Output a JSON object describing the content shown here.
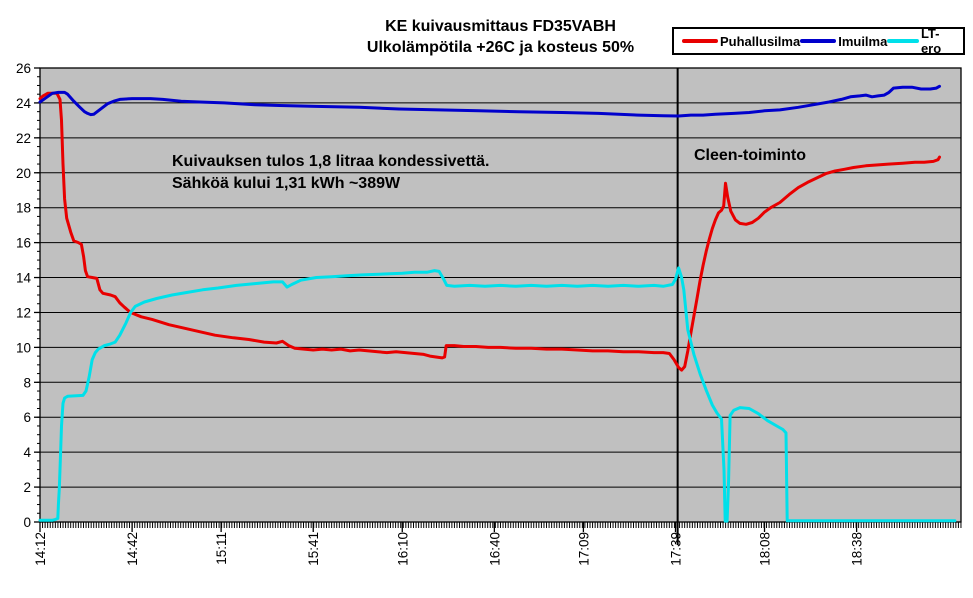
{
  "title": {
    "line1": "KE kuivausmittaus FD35VABH",
    "line2": "Ulkolämpötila +26C ja kosteus 50%"
  },
  "annotations": {
    "result_line1": "Kuivauksen tulos 1,8 litraa kondessivettä.",
    "result_line2": "Sähköä kului 1,31 kWh ~389W",
    "event_label": "Cleen-toiminto"
  },
  "chart_data": {
    "type": "line",
    "title": "KE kuivausmittaus FD35VABH — Ulkolämpötila +26C ja kosteus 50%",
    "xlabel": "",
    "ylabel": "",
    "x_unit": "minutes after 14:12",
    "x_axis_end_minute": 300,
    "ylim": [
      0,
      26
    ],
    "y_tick_step": 2,
    "y_minor_tick_step": 0.5,
    "x_minor_tick_minutes": 0.8333,
    "grid": "horizontal-black-on-gray",
    "plot_bg": "#c0c0c0",
    "grid_color": "#000000",
    "legend_position": "top-right",
    "event_line_minute": 207.7,
    "event_line_color": "#000000",
    "y_tick_labels": [
      "0",
      "2",
      "4",
      "6",
      "8",
      "10",
      "12",
      "14",
      "16",
      "18",
      "20",
      "22",
      "24",
      "26"
    ],
    "x_ticks": [
      {
        "minute": 0,
        "label": "14:12"
      },
      {
        "minute": 30,
        "label": "14:42"
      },
      {
        "minute": 59,
        "label": "15:11"
      },
      {
        "minute": 89,
        "label": "15:41"
      },
      {
        "minute": 118,
        "label": "16:10"
      },
      {
        "minute": 148,
        "label": "16:40"
      },
      {
        "minute": 177,
        "label": "17:09"
      },
      {
        "minute": 207,
        "label": "17:39"
      },
      {
        "minute": 236,
        "label": "18:08"
      },
      {
        "minute": 266,
        "label": "18:38"
      }
    ],
    "series": [
      {
        "name": "Puhallusilma",
        "color": "#e80000",
        "points": [
          [
            0,
            24.25
          ],
          [
            1,
            24.4
          ],
          [
            2.5,
            24.55
          ],
          [
            5.5,
            24.55
          ],
          [
            6.5,
            24.2
          ],
          [
            7,
            23
          ],
          [
            7.5,
            20.5
          ],
          [
            8,
            18.5
          ],
          [
            8.7,
            17.4
          ],
          [
            10,
            16.6
          ],
          [
            11,
            16.1
          ],
          [
            12.5,
            16
          ],
          [
            13.5,
            15.9
          ],
          [
            14.2,
            15.2
          ],
          [
            14.8,
            14.4
          ],
          [
            15.5,
            14.05
          ],
          [
            17,
            14
          ],
          [
            18.5,
            13.95
          ],
          [
            19.5,
            13.3
          ],
          [
            20.5,
            13.1
          ],
          [
            23,
            13
          ],
          [
            24.5,
            12.9
          ],
          [
            26,
            12.55
          ],
          [
            27.5,
            12.3
          ],
          [
            29.5,
            12
          ],
          [
            33,
            11.75
          ],
          [
            36.5,
            11.6
          ],
          [
            42,
            11.3
          ],
          [
            47,
            11.1
          ],
          [
            52,
            10.9
          ],
          [
            57,
            10.7
          ],
          [
            63,
            10.55
          ],
          [
            68,
            10.45
          ],
          [
            73,
            10.3
          ],
          [
            77,
            10.25
          ],
          [
            79,
            10.35
          ],
          [
            81,
            10.1
          ],
          [
            83,
            9.95
          ],
          [
            86,
            9.9
          ],
          [
            89,
            9.85
          ],
          [
            92,
            9.9
          ],
          [
            95,
            9.85
          ],
          [
            98,
            9.9
          ],
          [
            101,
            9.8
          ],
          [
            104,
            9.85
          ],
          [
            107,
            9.8
          ],
          [
            110,
            9.75
          ],
          [
            113,
            9.7
          ],
          [
            116,
            9.75
          ],
          [
            119,
            9.7
          ],
          [
            122,
            9.65
          ],
          [
            125,
            9.6
          ],
          [
            127,
            9.5
          ],
          [
            129,
            9.45
          ],
          [
            131,
            9.4
          ],
          [
            131.8,
            9.45
          ],
          [
            132.3,
            10.1
          ],
          [
            135,
            10.1
          ],
          [
            138,
            10.05
          ],
          [
            142,
            10.05
          ],
          [
            146,
            10
          ],
          [
            150,
            10
          ],
          [
            155,
            9.95
          ],
          [
            160,
            9.95
          ],
          [
            165,
            9.9
          ],
          [
            170,
            9.9
          ],
          [
            175,
            9.85
          ],
          [
            180,
            9.8
          ],
          [
            185,
            9.8
          ],
          [
            190,
            9.75
          ],
          [
            195,
            9.75
          ],
          [
            200,
            9.7
          ],
          [
            203,
            9.7
          ],
          [
            205,
            9.65
          ],
          [
            206.5,
            9.3
          ],
          [
            208,
            8.85
          ],
          [
            209,
            8.7
          ],
          [
            210,
            8.9
          ],
          [
            211,
            9.8
          ],
          [
            212,
            10.8
          ],
          [
            213,
            11.8
          ],
          [
            214,
            12.8
          ],
          [
            215,
            13.8
          ],
          [
            216,
            14.7
          ],
          [
            217,
            15.5
          ],
          [
            218,
            16.2
          ],
          [
            219,
            16.8
          ],
          [
            220,
            17.3
          ],
          [
            221,
            17.7
          ],
          [
            222,
            17.85
          ],
          [
            222.7,
            18.1
          ],
          [
            223.3,
            19.4
          ],
          [
            224,
            18.6
          ],
          [
            225,
            17.8
          ],
          [
            226.5,
            17.3
          ],
          [
            228,
            17.1
          ],
          [
            230,
            17.05
          ],
          [
            232,
            17.15
          ],
          [
            234,
            17.4
          ],
          [
            236,
            17.75
          ],
          [
            238,
            18
          ],
          [
            241,
            18.3
          ],
          [
            244,
            18.75
          ],
          [
            247,
            19.15
          ],
          [
            250,
            19.45
          ],
          [
            253,
            19.7
          ],
          [
            256,
            19.95
          ],
          [
            259,
            20.1
          ],
          [
            262,
            20.2
          ],
          [
            265,
            20.3
          ],
          [
            269,
            20.4
          ],
          [
            273,
            20.45
          ],
          [
            277,
            20.5
          ],
          [
            281,
            20.55
          ],
          [
            285,
            20.6
          ],
          [
            288,
            20.6
          ],
          [
            291,
            20.65
          ],
          [
            292.5,
            20.75
          ],
          [
            293,
            20.9
          ]
        ]
      },
      {
        "name": "Imuilma",
        "color": "#0000cc",
        "points": [
          [
            0,
            24.05
          ],
          [
            2,
            24.3
          ],
          [
            4,
            24.55
          ],
          [
            6,
            24.6
          ],
          [
            8,
            24.6
          ],
          [
            9,
            24.5
          ],
          [
            11,
            24.1
          ],
          [
            13,
            23.75
          ],
          [
            14.5,
            23.5
          ],
          [
            15.5,
            23.4
          ],
          [
            16.5,
            23.33
          ],
          [
            17.5,
            23.35
          ],
          [
            19,
            23.55
          ],
          [
            20.5,
            23.75
          ],
          [
            22,
            23.95
          ],
          [
            24,
            24.1
          ],
          [
            26,
            24.2
          ],
          [
            30,
            24.25
          ],
          [
            36,
            24.25
          ],
          [
            40,
            24.2
          ],
          [
            46,
            24.1
          ],
          [
            52,
            24.05
          ],
          [
            60,
            24
          ],
          [
            70,
            23.9
          ],
          [
            78,
            23.85
          ],
          [
            90,
            23.8
          ],
          [
            104,
            23.75
          ],
          [
            117,
            23.65
          ],
          [
            130,
            23.6
          ],
          [
            143,
            23.55
          ],
          [
            156,
            23.5
          ],
          [
            170,
            23.45
          ],
          [
            182,
            23.4
          ],
          [
            195,
            23.3
          ],
          [
            203,
            23.27
          ],
          [
            208,
            23.25
          ],
          [
            212,
            23.3
          ],
          [
            216,
            23.3
          ],
          [
            220,
            23.35
          ],
          [
            226,
            23.4
          ],
          [
            231,
            23.45
          ],
          [
            236,
            23.55
          ],
          [
            241,
            23.6
          ],
          [
            247,
            23.75
          ],
          [
            252,
            23.9
          ],
          [
            257,
            24.05
          ],
          [
            261,
            24.2
          ],
          [
            264,
            24.35
          ],
          [
            267,
            24.4
          ],
          [
            269,
            24.45
          ],
          [
            271,
            24.35
          ],
          [
            273,
            24.4
          ],
          [
            275,
            24.45
          ],
          [
            276.5,
            24.6
          ],
          [
            278,
            24.85
          ],
          [
            281,
            24.9
          ],
          [
            284,
            24.9
          ],
          [
            287,
            24.8
          ],
          [
            290,
            24.8
          ],
          [
            292,
            24.85
          ],
          [
            293,
            24.95
          ]
        ]
      },
      {
        "name": "LT-ero",
        "color": "#00e0ea",
        "points": [
          [
            0,
            0.1
          ],
          [
            4,
            0.1
          ],
          [
            5,
            0.15
          ],
          [
            5.8,
            0.2
          ],
          [
            6,
            1
          ],
          [
            6.3,
            1.9
          ],
          [
            6.6,
            3.5
          ],
          [
            7,
            5.5
          ],
          [
            7.5,
            6.8
          ],
          [
            8,
            7.1
          ],
          [
            9,
            7.2
          ],
          [
            14,
            7.25
          ],
          [
            15,
            7.5
          ],
          [
            16,
            8.3
          ],
          [
            17,
            9.3
          ],
          [
            18,
            9.7
          ],
          [
            19,
            9.9
          ],
          [
            21,
            10.1
          ],
          [
            23,
            10.2
          ],
          [
            24.5,
            10.3
          ],
          [
            26,
            10.7
          ],
          [
            28,
            11.4
          ],
          [
            29.5,
            12
          ],
          [
            31,
            12.35
          ],
          [
            34,
            12.6
          ],
          [
            38,
            12.8
          ],
          [
            43,
            13
          ],
          [
            48,
            13.15
          ],
          [
            53,
            13.3
          ],
          [
            58,
            13.4
          ],
          [
            64,
            13.55
          ],
          [
            70,
            13.65
          ],
          [
            76,
            13.75
          ],
          [
            79,
            13.75
          ],
          [
            80.5,
            13.45
          ],
          [
            82,
            13.6
          ],
          [
            85,
            13.85
          ],
          [
            90,
            14
          ],
          [
            95,
            14.05
          ],
          [
            100,
            14.1
          ],
          [
            105,
            14.15
          ],
          [
            112,
            14.2
          ],
          [
            118,
            14.25
          ],
          [
            122,
            14.3
          ],
          [
            126,
            14.3
          ],
          [
            128.5,
            14.4
          ],
          [
            130,
            14.35
          ],
          [
            131.5,
            13.9
          ],
          [
            132.5,
            13.55
          ],
          [
            135,
            13.5
          ],
          [
            140,
            13.55
          ],
          [
            145,
            13.5
          ],
          [
            150,
            13.55
          ],
          [
            155,
            13.5
          ],
          [
            160,
            13.55
          ],
          [
            165,
            13.5
          ],
          [
            170,
            13.55
          ],
          [
            175,
            13.5
          ],
          [
            180,
            13.55
          ],
          [
            185,
            13.5
          ],
          [
            190,
            13.55
          ],
          [
            195,
            13.5
          ],
          [
            200,
            13.55
          ],
          [
            203,
            13.5
          ],
          [
            206,
            13.6
          ],
          [
            207,
            13.9
          ],
          [
            208,
            14.55
          ],
          [
            209,
            14
          ],
          [
            209.7,
            13.3
          ],
          [
            211,
            11
          ],
          [
            213,
            9.6
          ],
          [
            215,
            8.5
          ],
          [
            217,
            7.55
          ],
          [
            219,
            6.7
          ],
          [
            220.5,
            6.25
          ],
          [
            222,
            5.9
          ],
          [
            222.8,
            3
          ],
          [
            223.2,
            0.05
          ],
          [
            223.8,
            0.05
          ],
          [
            224.3,
            2.4
          ],
          [
            224.8,
            6.1
          ],
          [
            226,
            6.4
          ],
          [
            228,
            6.55
          ],
          [
            231,
            6.5
          ],
          [
            234,
            6.2
          ],
          [
            237,
            5.8
          ],
          [
            240,
            5.5
          ],
          [
            242,
            5.3
          ],
          [
            243,
            5.1
          ],
          [
            243.4,
            0.07
          ],
          [
            250,
            0.07
          ],
          [
            260,
            0.07
          ],
          [
            275,
            0.07
          ],
          [
            290,
            0.07
          ],
          [
            298,
            0.07
          ]
        ]
      }
    ]
  }
}
